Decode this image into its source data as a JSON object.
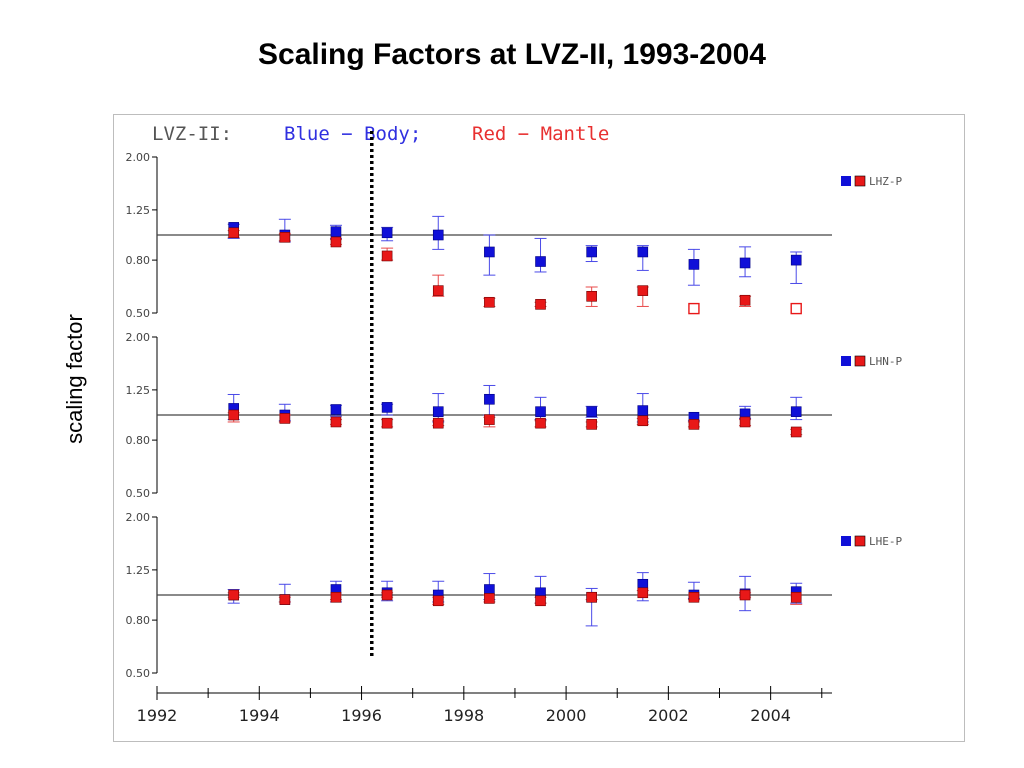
{
  "title": "Scaling Factors at LVZ-II, 1993-2004",
  "ylabel": "scaling factor",
  "header": {
    "station": "LVZ-II:",
    "blue_part": "Blue − Body;",
    "red_part": "Red − Mantle"
  },
  "colors": {
    "body": "#1010d8",
    "mantle": "#e81818",
    "blue_text": "#3030e0",
    "red_text": "#e83030",
    "axis": "#000000"
  },
  "chart_data": {
    "type": "scatter",
    "title": "Scaling Factors at LVZ-II, 1993-2004",
    "xlabel": "",
    "ylabel": "scaling factor",
    "x_ticks": [
      "1992",
      "1994",
      "1996",
      "1998",
      "2000",
      "2002",
      "2004"
    ],
    "xlim": [
      1992,
      2005.2
    ],
    "divider_year": 1996.2,
    "panels": [
      {
        "component": "LHZ-P",
        "ylim": [
          0.5,
          2.0
        ],
        "y_ticks": [
          "2.00",
          "1.25",
          "0.80",
          "0.50"
        ],
        "reference_line": 1.0,
        "series": [
          {
            "name": "Body",
            "color": "blue",
            "points": [
              {
                "x": 1993.5,
                "y": 1.07,
                "lo": 0.97,
                "hi": 1.1
              },
              {
                "x": 1994.5,
                "y": 1.0,
                "lo": 0.94,
                "hi": 1.15
              },
              {
                "x": 1995.5,
                "y": 1.03,
                "lo": 0.97,
                "hi": 1.09
              },
              {
                "x": 1996.5,
                "y": 1.02,
                "lo": 0.95,
                "hi": 1.07
              },
              {
                "x": 1997.5,
                "y": 1.0,
                "lo": 0.88,
                "hi": 1.18
              },
              {
                "x": 1998.5,
                "y": 0.86,
                "lo": 0.7,
                "hi": 1.0
              },
              {
                "x": 1999.5,
                "y": 0.79,
                "lo": 0.72,
                "hi": 0.97
              },
              {
                "x": 2000.5,
                "y": 0.86,
                "lo": 0.79,
                "hi": 0.91
              },
              {
                "x": 2001.5,
                "y": 0.86,
                "lo": 0.73,
                "hi": 0.91
              },
              {
                "x": 2002.5,
                "y": 0.77,
                "lo": 0.64,
                "hi": 0.88
              },
              {
                "x": 2003.5,
                "y": 0.78,
                "lo": 0.69,
                "hi": 0.9
              },
              {
                "x": 2004.5,
                "y": 0.8,
                "lo": 0.65,
                "hi": 0.86
              }
            ]
          },
          {
            "name": "Mantle",
            "color": "red",
            "points": [
              {
                "x": 1993.5,
                "y": 1.02,
                "lo": 0.98,
                "hi": 1.04
              },
              {
                "x": 1994.5,
                "y": 0.98,
                "lo": 0.95,
                "hi": 1.01
              },
              {
                "x": 1995.5,
                "y": 0.94,
                "lo": 0.92,
                "hi": 0.96
              },
              {
                "x": 1996.5,
                "y": 0.83,
                "lo": 0.8,
                "hi": 0.89
              },
              {
                "x": 1997.5,
                "y": 0.61,
                "lo": 0.58,
                "hi": 0.7
              },
              {
                "x": 1998.5,
                "y": 0.55,
                "lo": 0.53,
                "hi": 0.57
              },
              {
                "x": 1999.5,
                "y": 0.54,
                "lo": 0.53,
                "hi": 0.55
              },
              {
                "x": 2000.5,
                "y": 0.58,
                "lo": 0.53,
                "hi": 0.63
              },
              {
                "x": 2001.5,
                "y": 0.61,
                "lo": 0.53,
                "hi": 0.63
              },
              {
                "x": 2002.5,
                "y": 0.52,
                "lo": 0.52,
                "hi": 0.52,
                "open": true
              },
              {
                "x": 2003.5,
                "y": 0.56,
                "lo": 0.53,
                "hi": 0.58
              },
              {
                "x": 2004.5,
                "y": 0.52,
                "lo": 0.52,
                "hi": 0.52,
                "open": true
              }
            ]
          }
        ]
      },
      {
        "component": "LHN-P",
        "ylim": [
          0.5,
          2.0
        ],
        "y_ticks": [
          "2.00",
          "1.25",
          "0.80",
          "0.50"
        ],
        "reference_line": 1.0,
        "series": [
          {
            "name": "Body",
            "color": "blue",
            "points": [
              {
                "x": 1993.5,
                "y": 1.06,
                "lo": 0.96,
                "hi": 1.2
              },
              {
                "x": 1994.5,
                "y": 1.0,
                "lo": 0.95,
                "hi": 1.1
              },
              {
                "x": 1995.5,
                "y": 1.05,
                "lo": 0.99,
                "hi": 1.09
              },
              {
                "x": 1996.5,
                "y": 1.07,
                "lo": 1.0,
                "hi": 1.1
              },
              {
                "x": 1997.5,
                "y": 1.03,
                "lo": 0.94,
                "hi": 1.21
              },
              {
                "x": 1998.5,
                "y": 1.15,
                "lo": 1.0,
                "hi": 1.3
              },
              {
                "x": 1999.5,
                "y": 1.03,
                "lo": 0.96,
                "hi": 1.17
              },
              {
                "x": 2000.5,
                "y": 1.03,
                "lo": 0.98,
                "hi": 1.08
              },
              {
                "x": 2001.5,
                "y": 1.04,
                "lo": 0.94,
                "hi": 1.21
              },
              {
                "x": 2002.5,
                "y": 0.98,
                "lo": 0.95,
                "hi": 1.0
              },
              {
                "x": 2003.5,
                "y": 1.01,
                "lo": 0.97,
                "hi": 1.08
              },
              {
                "x": 2004.5,
                "y": 1.03,
                "lo": 0.96,
                "hi": 1.17
              }
            ]
          },
          {
            "name": "Mantle",
            "color": "red",
            "points": [
              {
                "x": 1993.5,
                "y": 1.0,
                "lo": 0.94,
                "hi": 1.02
              },
              {
                "x": 1994.5,
                "y": 0.97,
                "lo": 0.94,
                "hi": 1.0
              },
              {
                "x": 1995.5,
                "y": 0.94,
                "lo": 0.92,
                "hi": 0.96
              },
              {
                "x": 1996.5,
                "y": 0.93,
                "lo": 0.9,
                "hi": 0.96
              },
              {
                "x": 1997.5,
                "y": 0.93,
                "lo": 0.91,
                "hi": 0.95
              },
              {
                "x": 1998.5,
                "y": 0.96,
                "lo": 0.9,
                "hi": 0.98
              },
              {
                "x": 1999.5,
                "y": 0.93,
                "lo": 0.9,
                "hi": 0.95
              },
              {
                "x": 2000.5,
                "y": 0.92,
                "lo": 0.9,
                "hi": 0.94
              },
              {
                "x": 2001.5,
                "y": 0.95,
                "lo": 0.92,
                "hi": 0.97
              },
              {
                "x": 2002.5,
                "y": 0.92,
                "lo": 0.9,
                "hi": 0.94
              },
              {
                "x": 2003.5,
                "y": 0.94,
                "lo": 0.91,
                "hi": 0.96
              },
              {
                "x": 2004.5,
                "y": 0.86,
                "lo": 0.84,
                "hi": 0.88
              }
            ]
          }
        ]
      },
      {
        "component": "LHE-P",
        "ylim": [
          0.5,
          2.0
        ],
        "y_ticks": [
          "2.00",
          "1.25",
          "0.80",
          "0.50"
        ],
        "reference_line": 1.0,
        "series": [
          {
            "name": "Body",
            "color": "blue",
            "points": [
              {
                "x": 1993.5,
                "y": 1.0,
                "lo": 0.93,
                "hi": 1.05
              },
              {
                "x": 1994.5,
                "y": 0.96,
                "lo": 0.94,
                "hi": 1.1
              },
              {
                "x": 1995.5,
                "y": 1.05,
                "lo": 0.94,
                "hi": 1.13
              },
              {
                "x": 1996.5,
                "y": 1.02,
                "lo": 0.95,
                "hi": 1.13
              },
              {
                "x": 1997.5,
                "y": 1.0,
                "lo": 0.94,
                "hi": 1.13
              },
              {
                "x": 1998.5,
                "y": 1.05,
                "lo": 0.96,
                "hi": 1.21
              },
              {
                "x": 1999.5,
                "y": 1.02,
                "lo": 0.93,
                "hi": 1.18
              },
              {
                "x": 2000.5,
                "y": 0.98,
                "lo": 0.76,
                "hi": 1.06
              },
              {
                "x": 2001.5,
                "y": 1.1,
                "lo": 0.95,
                "hi": 1.22
              },
              {
                "x": 2002.5,
                "y": 1.0,
                "lo": 0.97,
                "hi": 1.12
              },
              {
                "x": 2003.5,
                "y": 1.01,
                "lo": 0.87,
                "hi": 1.18
              },
              {
                "x": 2004.5,
                "y": 1.03,
                "lo": 0.93,
                "hi": 1.11
              }
            ]
          },
          {
            "name": "Mantle",
            "color": "red",
            "points": [
              {
                "x": 1993.5,
                "y": 1.0,
                "lo": 0.98,
                "hi": 1.02
              },
              {
                "x": 1994.5,
                "y": 0.96,
                "lo": 0.94,
                "hi": 0.98
              },
              {
                "x": 1995.5,
                "y": 0.98,
                "lo": 0.96,
                "hi": 1.0
              },
              {
                "x": 1996.5,
                "y": 1.0,
                "lo": 0.98,
                "hi": 1.02
              },
              {
                "x": 1997.5,
                "y": 0.95,
                "lo": 0.92,
                "hi": 0.98
              },
              {
                "x": 1998.5,
                "y": 0.97,
                "lo": 0.94,
                "hi": 1.0
              },
              {
                "x": 1999.5,
                "y": 0.95,
                "lo": 0.93,
                "hi": 0.98
              },
              {
                "x": 2000.5,
                "y": 0.98,
                "lo": 0.96,
                "hi": 1.0
              },
              {
                "x": 2001.5,
                "y": 1.02,
                "lo": 1.0,
                "hi": 1.04
              },
              {
                "x": 2002.5,
                "y": 0.98,
                "lo": 0.96,
                "hi": 1.0
              },
              {
                "x": 2003.5,
                "y": 1.0,
                "lo": 0.98,
                "hi": 1.02
              },
              {
                "x": 2004.5,
                "y": 0.98,
                "lo": 0.92,
                "hi": 1.0
              }
            ]
          }
        ]
      }
    ]
  }
}
